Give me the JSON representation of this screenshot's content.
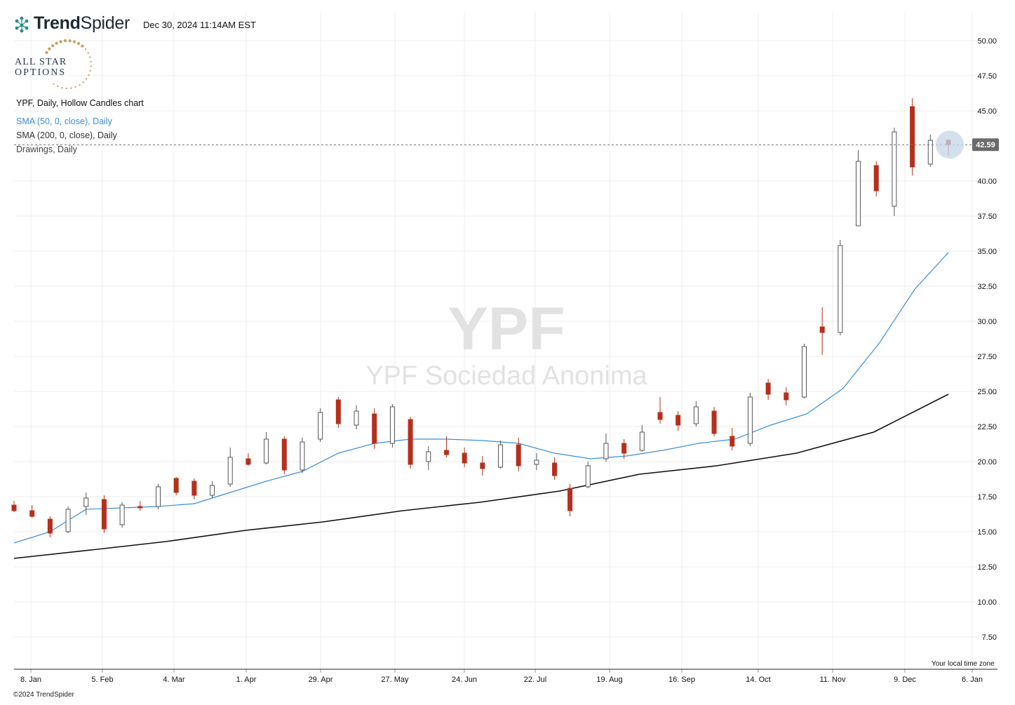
{
  "header": {
    "brand_bold": "Trend",
    "brand_light": "Spider",
    "timestamp": "Dec 30, 2024 11:14AM EST",
    "logo_top": "ALL STAR",
    "logo_bottom": "OPTIONS"
  },
  "legend": {
    "title": "YPF, Daily, Hollow Candles chart",
    "sma50": "SMA (50, 0, close), Daily",
    "sma200": "SMA (200, 0, close), Daily",
    "drawings": "Drawings, Daily"
  },
  "watermark": {
    "ticker": "YPF",
    "company": "YPF Sociedad Anonima"
  },
  "footer": {
    "copyright": "©2024 TrendSpider",
    "timezone_note": "Your local time zone"
  },
  "colors": {
    "down_candle": "#b5301c",
    "up_candle": "#555555",
    "sma50": "#3a8fd6",
    "sma200": "#111111",
    "price_label_bg": "#6b6b6b",
    "highlight": "#c4d7ea"
  },
  "chart_data": {
    "type": "candlestick",
    "title": "YPF, Daily, Hollow Candles chart",
    "y_axis": {
      "ticks": [
        7.5,
        10.0,
        12.5,
        15.0,
        17.5,
        20.0,
        22.5,
        25.0,
        27.5,
        30.0,
        32.5,
        35.0,
        37.5,
        40.0,
        42.5,
        45.0,
        47.5,
        50.0
      ],
      "tick_labels": [
        "7.50",
        "10.00",
        "12.50",
        "15.00",
        "17.50",
        "20.00",
        "22.50",
        "25.00",
        "27.50",
        "30.00",
        "32.50",
        "35.00",
        "37.50",
        "40.00",
        "42.50",
        "45.00",
        "47.50",
        "50.00"
      ],
      "range": [
        5.2,
        52.0
      ],
      "position": "right"
    },
    "x_axis": {
      "tick_labels": [
        "8. Jan",
        "5. Feb",
        "4. Mar",
        "1. Apr",
        "29. Apr",
        "27. May",
        "24. Jun",
        "22. Jul",
        "19. Aug",
        "16. Sep",
        "14. Oct",
        "11. Nov",
        "9. Dec",
        "6. Jan"
      ],
      "range": [
        "2024-01-02",
        "2025-01-08"
      ]
    },
    "last_price": 42.59,
    "last_price_label": "42.59",
    "grid": true,
    "series": [
      {
        "name": "SMA (50, 0, close), Daily",
        "points": [
          [
            "2024-01-02",
            14.2
          ],
          [
            "2024-01-16",
            15.0
          ],
          [
            "2024-01-30",
            16.6
          ],
          [
            "2024-02-13",
            16.7
          ],
          [
            "2024-02-27",
            16.8
          ],
          [
            "2024-03-12",
            17.0
          ],
          [
            "2024-03-26",
            17.8
          ],
          [
            "2024-04-09",
            18.6
          ],
          [
            "2024-04-23",
            19.3
          ],
          [
            "2024-05-07",
            20.6
          ],
          [
            "2024-05-21",
            21.3
          ],
          [
            "2024-06-04",
            21.6
          ],
          [
            "2024-06-18",
            21.6
          ],
          [
            "2024-07-02",
            21.5
          ],
          [
            "2024-07-16",
            21.3
          ],
          [
            "2024-07-30",
            20.6
          ],
          [
            "2024-08-13",
            20.2
          ],
          [
            "2024-08-27",
            20.4
          ],
          [
            "2024-09-10",
            20.8
          ],
          [
            "2024-09-24",
            21.3
          ],
          [
            "2024-10-08",
            21.6
          ],
          [
            "2024-10-22",
            22.6
          ],
          [
            "2024-11-05",
            23.4
          ],
          [
            "2024-11-19",
            25.2
          ],
          [
            "2024-12-03",
            28.4
          ],
          [
            "2024-12-17",
            32.3
          ],
          [
            "2024-12-30",
            34.9
          ]
        ]
      },
      {
        "name": "SMA (200, 0, close), Daily",
        "points": [
          [
            "2024-01-02",
            13.1
          ],
          [
            "2024-02-01",
            13.7
          ],
          [
            "2024-03-01",
            14.3
          ],
          [
            "2024-04-01",
            15.1
          ],
          [
            "2024-05-01",
            15.7
          ],
          [
            "2024-06-01",
            16.5
          ],
          [
            "2024-07-01",
            17.1
          ],
          [
            "2024-08-01",
            17.9
          ],
          [
            "2024-09-01",
            19.1
          ],
          [
            "2024-10-01",
            19.7
          ],
          [
            "2024-11-01",
            20.6
          ],
          [
            "2024-12-01",
            22.1
          ],
          [
            "2024-12-30",
            24.8
          ]
        ]
      }
    ],
    "candles": [
      {
        "d": "2024-01-02",
        "o": 16.9,
        "h": 17.2,
        "l": 16.4,
        "c": 16.5
      },
      {
        "d": "2024-01-09",
        "o": 16.5,
        "h": 16.9,
        "l": 16.0,
        "c": 16.1
      },
      {
        "d": "2024-01-16",
        "o": 15.9,
        "h": 16.1,
        "l": 14.6,
        "c": 14.9
      },
      {
        "d": "2024-01-23",
        "o": 15.0,
        "h": 16.8,
        "l": 14.9,
        "c": 16.6
      },
      {
        "d": "2024-01-30",
        "o": 16.8,
        "h": 17.8,
        "l": 16.2,
        "c": 17.4
      },
      {
        "d": "2024-02-06",
        "o": 17.3,
        "h": 17.6,
        "l": 14.9,
        "c": 15.2
      },
      {
        "d": "2024-02-13",
        "o": 15.5,
        "h": 17.1,
        "l": 15.3,
        "c": 16.9
      },
      {
        "d": "2024-02-20",
        "o": 16.8,
        "h": 17.2,
        "l": 16.5,
        "c": 16.7
      },
      {
        "d": "2024-02-27",
        "o": 16.8,
        "h": 18.4,
        "l": 16.6,
        "c": 18.2
      },
      {
        "d": "2024-03-05",
        "o": 18.8,
        "h": 18.9,
        "l": 17.6,
        "c": 17.8
      },
      {
        "d": "2024-03-12",
        "o": 18.6,
        "h": 18.8,
        "l": 17.3,
        "c": 17.6
      },
      {
        "d": "2024-03-19",
        "o": 17.6,
        "h": 18.6,
        "l": 17.4,
        "c": 18.3
      },
      {
        "d": "2024-03-26",
        "o": 18.4,
        "h": 21.0,
        "l": 18.2,
        "c": 20.3
      },
      {
        "d": "2024-04-02",
        "o": 20.2,
        "h": 20.6,
        "l": 19.7,
        "c": 19.8
      },
      {
        "d": "2024-04-09",
        "o": 19.9,
        "h": 22.1,
        "l": 19.8,
        "c": 21.6
      },
      {
        "d": "2024-04-16",
        "o": 21.6,
        "h": 21.8,
        "l": 19.1,
        "c": 19.4
      },
      {
        "d": "2024-04-23",
        "o": 19.4,
        "h": 21.7,
        "l": 19.2,
        "c": 21.4
      },
      {
        "d": "2024-04-30",
        "o": 21.6,
        "h": 23.8,
        "l": 21.4,
        "c": 23.5
      },
      {
        "d": "2024-05-07",
        "o": 24.4,
        "h": 24.6,
        "l": 22.4,
        "c": 22.7
      },
      {
        "d": "2024-05-14",
        "o": 22.6,
        "h": 24.0,
        "l": 22.3,
        "c": 23.6
      },
      {
        "d": "2024-05-21",
        "o": 23.4,
        "h": 23.8,
        "l": 20.9,
        "c": 21.3
      },
      {
        "d": "2024-05-28",
        "o": 21.3,
        "h": 24.1,
        "l": 21.0,
        "c": 23.9
      },
      {
        "d": "2024-06-04",
        "o": 23.0,
        "h": 23.2,
        "l": 19.5,
        "c": 19.8
      },
      {
        "d": "2024-06-11",
        "o": 20.0,
        "h": 21.1,
        "l": 19.4,
        "c": 20.7
      },
      {
        "d": "2024-06-18",
        "o": 20.8,
        "h": 21.8,
        "l": 20.3,
        "c": 20.5
      },
      {
        "d": "2024-06-25",
        "o": 20.6,
        "h": 21.0,
        "l": 19.6,
        "c": 19.9
      },
      {
        "d": "2024-07-02",
        "o": 19.9,
        "h": 20.4,
        "l": 19.0,
        "c": 19.5
      },
      {
        "d": "2024-07-09",
        "o": 19.6,
        "h": 21.5,
        "l": 19.5,
        "c": 21.2
      },
      {
        "d": "2024-07-16",
        "o": 21.2,
        "h": 21.7,
        "l": 19.3,
        "c": 19.7
      },
      {
        "d": "2024-07-23",
        "o": 19.8,
        "h": 20.6,
        "l": 19.4,
        "c": 20.1
      },
      {
        "d": "2024-07-30",
        "o": 19.9,
        "h": 20.3,
        "l": 18.7,
        "c": 19.0
      },
      {
        "d": "2024-08-05",
        "o": 18.1,
        "h": 18.4,
        "l": 16.1,
        "c": 16.5
      },
      {
        "d": "2024-08-12",
        "o": 18.2,
        "h": 20.0,
        "l": 18.1,
        "c": 19.7
      },
      {
        "d": "2024-08-19",
        "o": 20.2,
        "h": 22.0,
        "l": 20.0,
        "c": 21.3
      },
      {
        "d": "2024-08-26",
        "o": 21.3,
        "h": 21.6,
        "l": 20.2,
        "c": 20.6
      },
      {
        "d": "2024-09-02",
        "o": 20.8,
        "h": 22.6,
        "l": 20.7,
        "c": 22.1
      },
      {
        "d": "2024-09-09",
        "o": 23.5,
        "h": 24.6,
        "l": 22.7,
        "c": 23.0
      },
      {
        "d": "2024-09-16",
        "o": 23.3,
        "h": 23.6,
        "l": 22.2,
        "c": 22.6
      },
      {
        "d": "2024-09-23",
        "o": 22.7,
        "h": 24.3,
        "l": 22.5,
        "c": 23.9
      },
      {
        "d": "2024-09-30",
        "o": 23.6,
        "h": 23.9,
        "l": 21.8,
        "c": 22.0
      },
      {
        "d": "2024-10-07",
        "o": 21.8,
        "h": 22.4,
        "l": 20.8,
        "c": 21.1
      },
      {
        "d": "2024-10-14",
        "o": 21.3,
        "h": 24.9,
        "l": 21.1,
        "c": 24.6
      },
      {
        "d": "2024-10-21",
        "o": 25.6,
        "h": 25.9,
        "l": 24.4,
        "c": 24.8
      },
      {
        "d": "2024-10-28",
        "o": 24.9,
        "h": 25.3,
        "l": 24.0,
        "c": 24.4
      },
      {
        "d": "2024-11-04",
        "o": 24.6,
        "h": 28.4,
        "l": 24.5,
        "c": 28.2
      },
      {
        "d": "2024-11-11",
        "o": 29.6,
        "h": 31.0,
        "l": 27.6,
        "c": 29.2
      },
      {
        "d": "2024-11-18",
        "o": 29.2,
        "h": 35.8,
        "l": 29.0,
        "c": 35.4
      },
      {
        "d": "2024-11-25",
        "o": 36.8,
        "h": 42.2,
        "l": 37.0,
        "c": 41.4
      },
      {
        "d": "2024-12-02",
        "o": 41.1,
        "h": 41.4,
        "l": 38.9,
        "c": 39.3
      },
      {
        "d": "2024-12-09",
        "o": 38.2,
        "h": 43.8,
        "l": 37.5,
        "c": 43.5
      },
      {
        "d": "2024-12-16",
        "o": 45.3,
        "h": 45.9,
        "l": 40.4,
        "c": 41.0
      },
      {
        "d": "2024-12-23",
        "o": 41.2,
        "h": 43.3,
        "l": 41.0,
        "c": 42.9
      },
      {
        "d": "2024-12-30",
        "o": 42.9,
        "h": 43.0,
        "l": 41.8,
        "c": 42.59
      }
    ]
  }
}
